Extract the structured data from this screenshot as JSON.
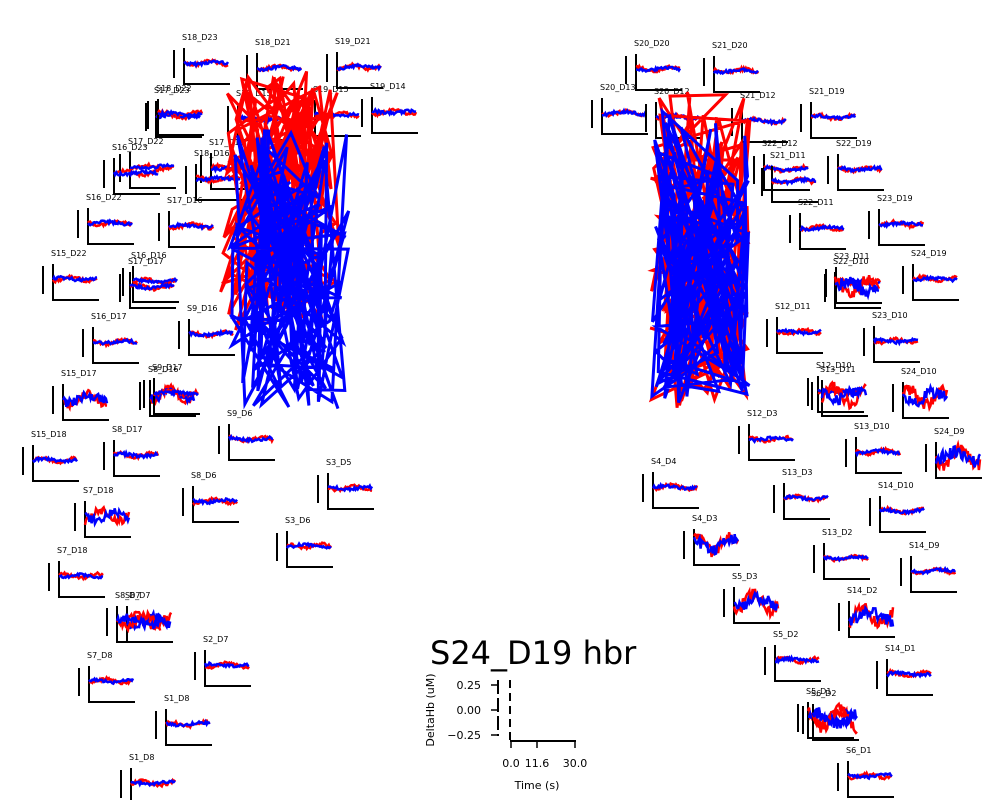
{
  "chart_data": {
    "type": "line",
    "title": "S24_D19 hbr",
    "xlabel": "Time (s)",
    "ylabel": "DeltaHb (uM)",
    "x_ticks": [
      "0.0",
      "11.6",
      "30.0"
    ],
    "y_ticks": [
      "0.25",
      "0.00",
      "−0.25"
    ],
    "xlim": [
      0.0,
      30.0
    ],
    "ylim": [
      -0.3,
      0.3
    ],
    "grid": false,
    "series_colors": {
      "hbo": "#ff0000",
      "hbr": "#0000ff"
    },
    "channels": [
      "S18_D23",
      "S18_D21",
      "S19_D21",
      "S17_D23",
      "S18_D22",
      "S18_D15",
      "S19_D15",
      "S19_D14",
      "S17_D22",
      "S16_D23",
      "S17_D15",
      "S18_D16",
      "S16_D22",
      "S17_D16",
      "S15_D22",
      "S16_D16",
      "S17_D17",
      "S9_D16",
      "S16_D17",
      "S15_D17",
      "S8_D16",
      "S9_D17",
      "S15_D18",
      "S8_D17",
      "S9_D6",
      "S3_D5",
      "S8_D6",
      "S7_D18",
      "S8_D7",
      "S7_D18b",
      "S3_D6",
      "S8_D7b",
      "S2_D7",
      "S7_D8",
      "S1_D8",
      "S1_D8b",
      "S20_D20",
      "S21_D20",
      "S20_D13",
      "S20_D12",
      "S21_D12",
      "S21_D19",
      "S22_D12",
      "S22_D19",
      "S21_D11",
      "S22_D11",
      "S23_D19",
      "S24_D19",
      "S23_D11",
      "S22_D10",
      "S12_D11",
      "S23_D10",
      "S12_D10",
      "S13_D11",
      "S24_D10",
      "S12_D3",
      "S13_D10",
      "S24_D9",
      "S4_D4",
      "S13_D3",
      "S14_D10",
      "S4_D3",
      "S13_D2",
      "S14_D9",
      "S5_D3",
      "S14_D2",
      "S5_D2",
      "S14_D1",
      "S5_D1",
      "S6_D2",
      "S6_D1"
    ]
  }
}
